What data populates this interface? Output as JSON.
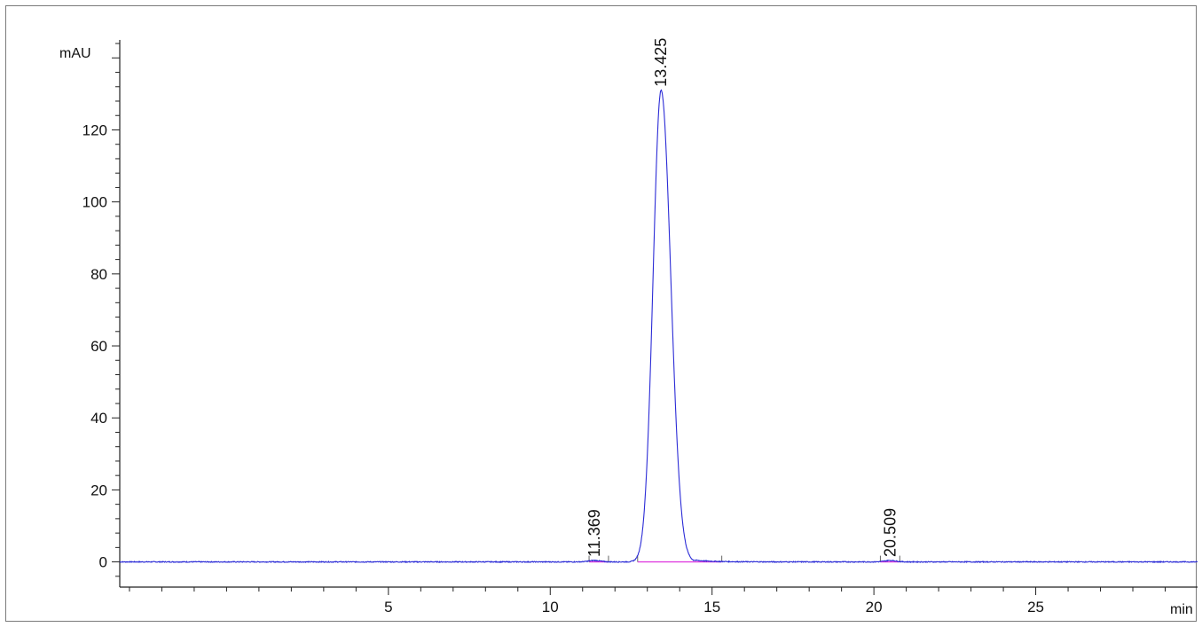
{
  "chart_data": {
    "type": "line",
    "xlabel": "min",
    "ylabel": "mAU",
    "xlim": [
      -3.3,
      30
    ],
    "ylim": [
      -7,
      145
    ],
    "x_ticks": [
      5,
      10,
      15,
      20,
      25
    ],
    "y_ticks": [
      0,
      20,
      40,
      60,
      80,
      100,
      120
    ],
    "grid": false,
    "colors": {
      "signal": "#2b2bd6",
      "baseline": "#e040e0",
      "axis": "#222222"
    },
    "series": [
      {
        "peaks": [
          {
            "rt": 11.369,
            "height": 0.4,
            "width": 0.18,
            "start": 11.2,
            "end": 11.8,
            "label": "11.369"
          },
          {
            "rt": 13.425,
            "height": 131,
            "width": 0.26,
            "start": 12.7,
            "end": 15.3,
            "label": "13.425"
          },
          {
            "rt": 20.509,
            "height": 0.4,
            "width": 0.18,
            "start": 20.2,
            "end": 20.8,
            "label": "20.509"
          }
        ]
      }
    ]
  }
}
